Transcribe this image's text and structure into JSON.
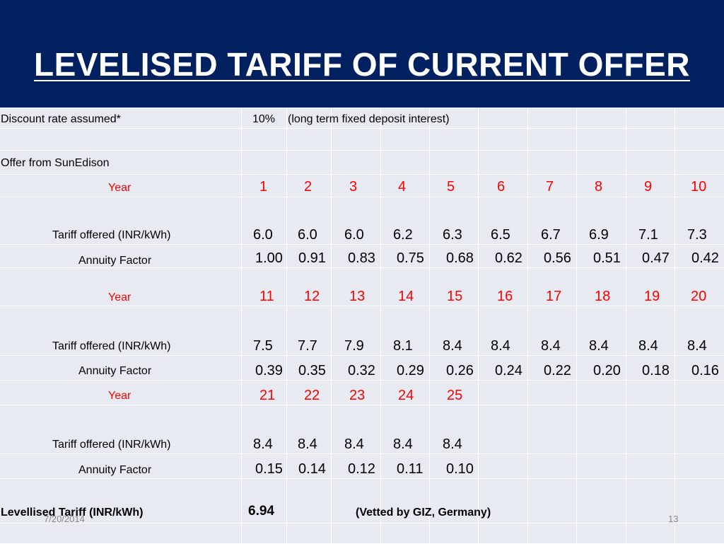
{
  "slide": {
    "title": "LEVELISED TARIFF OF CURRENT OFFER",
    "footer_date": "7/20/2014",
    "page_number": "13"
  },
  "table": {
    "discount_label": "Discount rate assumed*",
    "discount_value": "10%",
    "discount_note": "(long term fixed deposit interest)",
    "offer_label": "Offer from SunEdison",
    "year_label": "Year",
    "tariff_label": "Tariff offered (INR/kWh)",
    "annuity_label": "Annuity Factor",
    "block1": {
      "years": [
        "1",
        "2",
        "3",
        "4",
        "5",
        "6",
        "7",
        "8",
        "9",
        "10"
      ],
      "tariff": [
        "6.0",
        "6.0",
        "6.0",
        "6.2",
        "6.3",
        "6.5",
        "6.7",
        "6.9",
        "7.1",
        "7.3"
      ],
      "annuity": [
        "1.00",
        "0.91",
        "0.83",
        "0.75",
        "0.68",
        "0.62",
        "0.56",
        "0.51",
        "0.47",
        "0.42"
      ]
    },
    "block2": {
      "years": [
        "11",
        "12",
        "13",
        "14",
        "15",
        "16",
        "17",
        "18",
        "19",
        "20"
      ],
      "tariff": [
        "7.5",
        "7.7",
        "7.9",
        "8.1",
        "8.4",
        "8.4",
        "8.4",
        "8.4",
        "8.4",
        "8.4"
      ],
      "annuity": [
        "0.39",
        "0.35",
        "0.32",
        "0.29",
        "0.26",
        "0.24",
        "0.22",
        "0.20",
        "0.18",
        "0.16"
      ]
    },
    "block3": {
      "years": [
        "21",
        "22",
        "23",
        "24",
        "25"
      ],
      "tariff": [
        "8.4",
        "8.4",
        "8.4",
        "8.4",
        "8.4"
      ],
      "annuity": [
        "0.15",
        "0.14",
        "0.12",
        "0.11",
        "0.10"
      ]
    },
    "levelised_label": "Levellised Tariff (INR/kWh)",
    "levelised_value": "6.94",
    "vetted_note": "(Vetted by GIZ, Germany)"
  },
  "colors": {
    "header_bg": "#002060",
    "table_bg": "#e8eaf2",
    "year_red": "#ff0000"
  }
}
